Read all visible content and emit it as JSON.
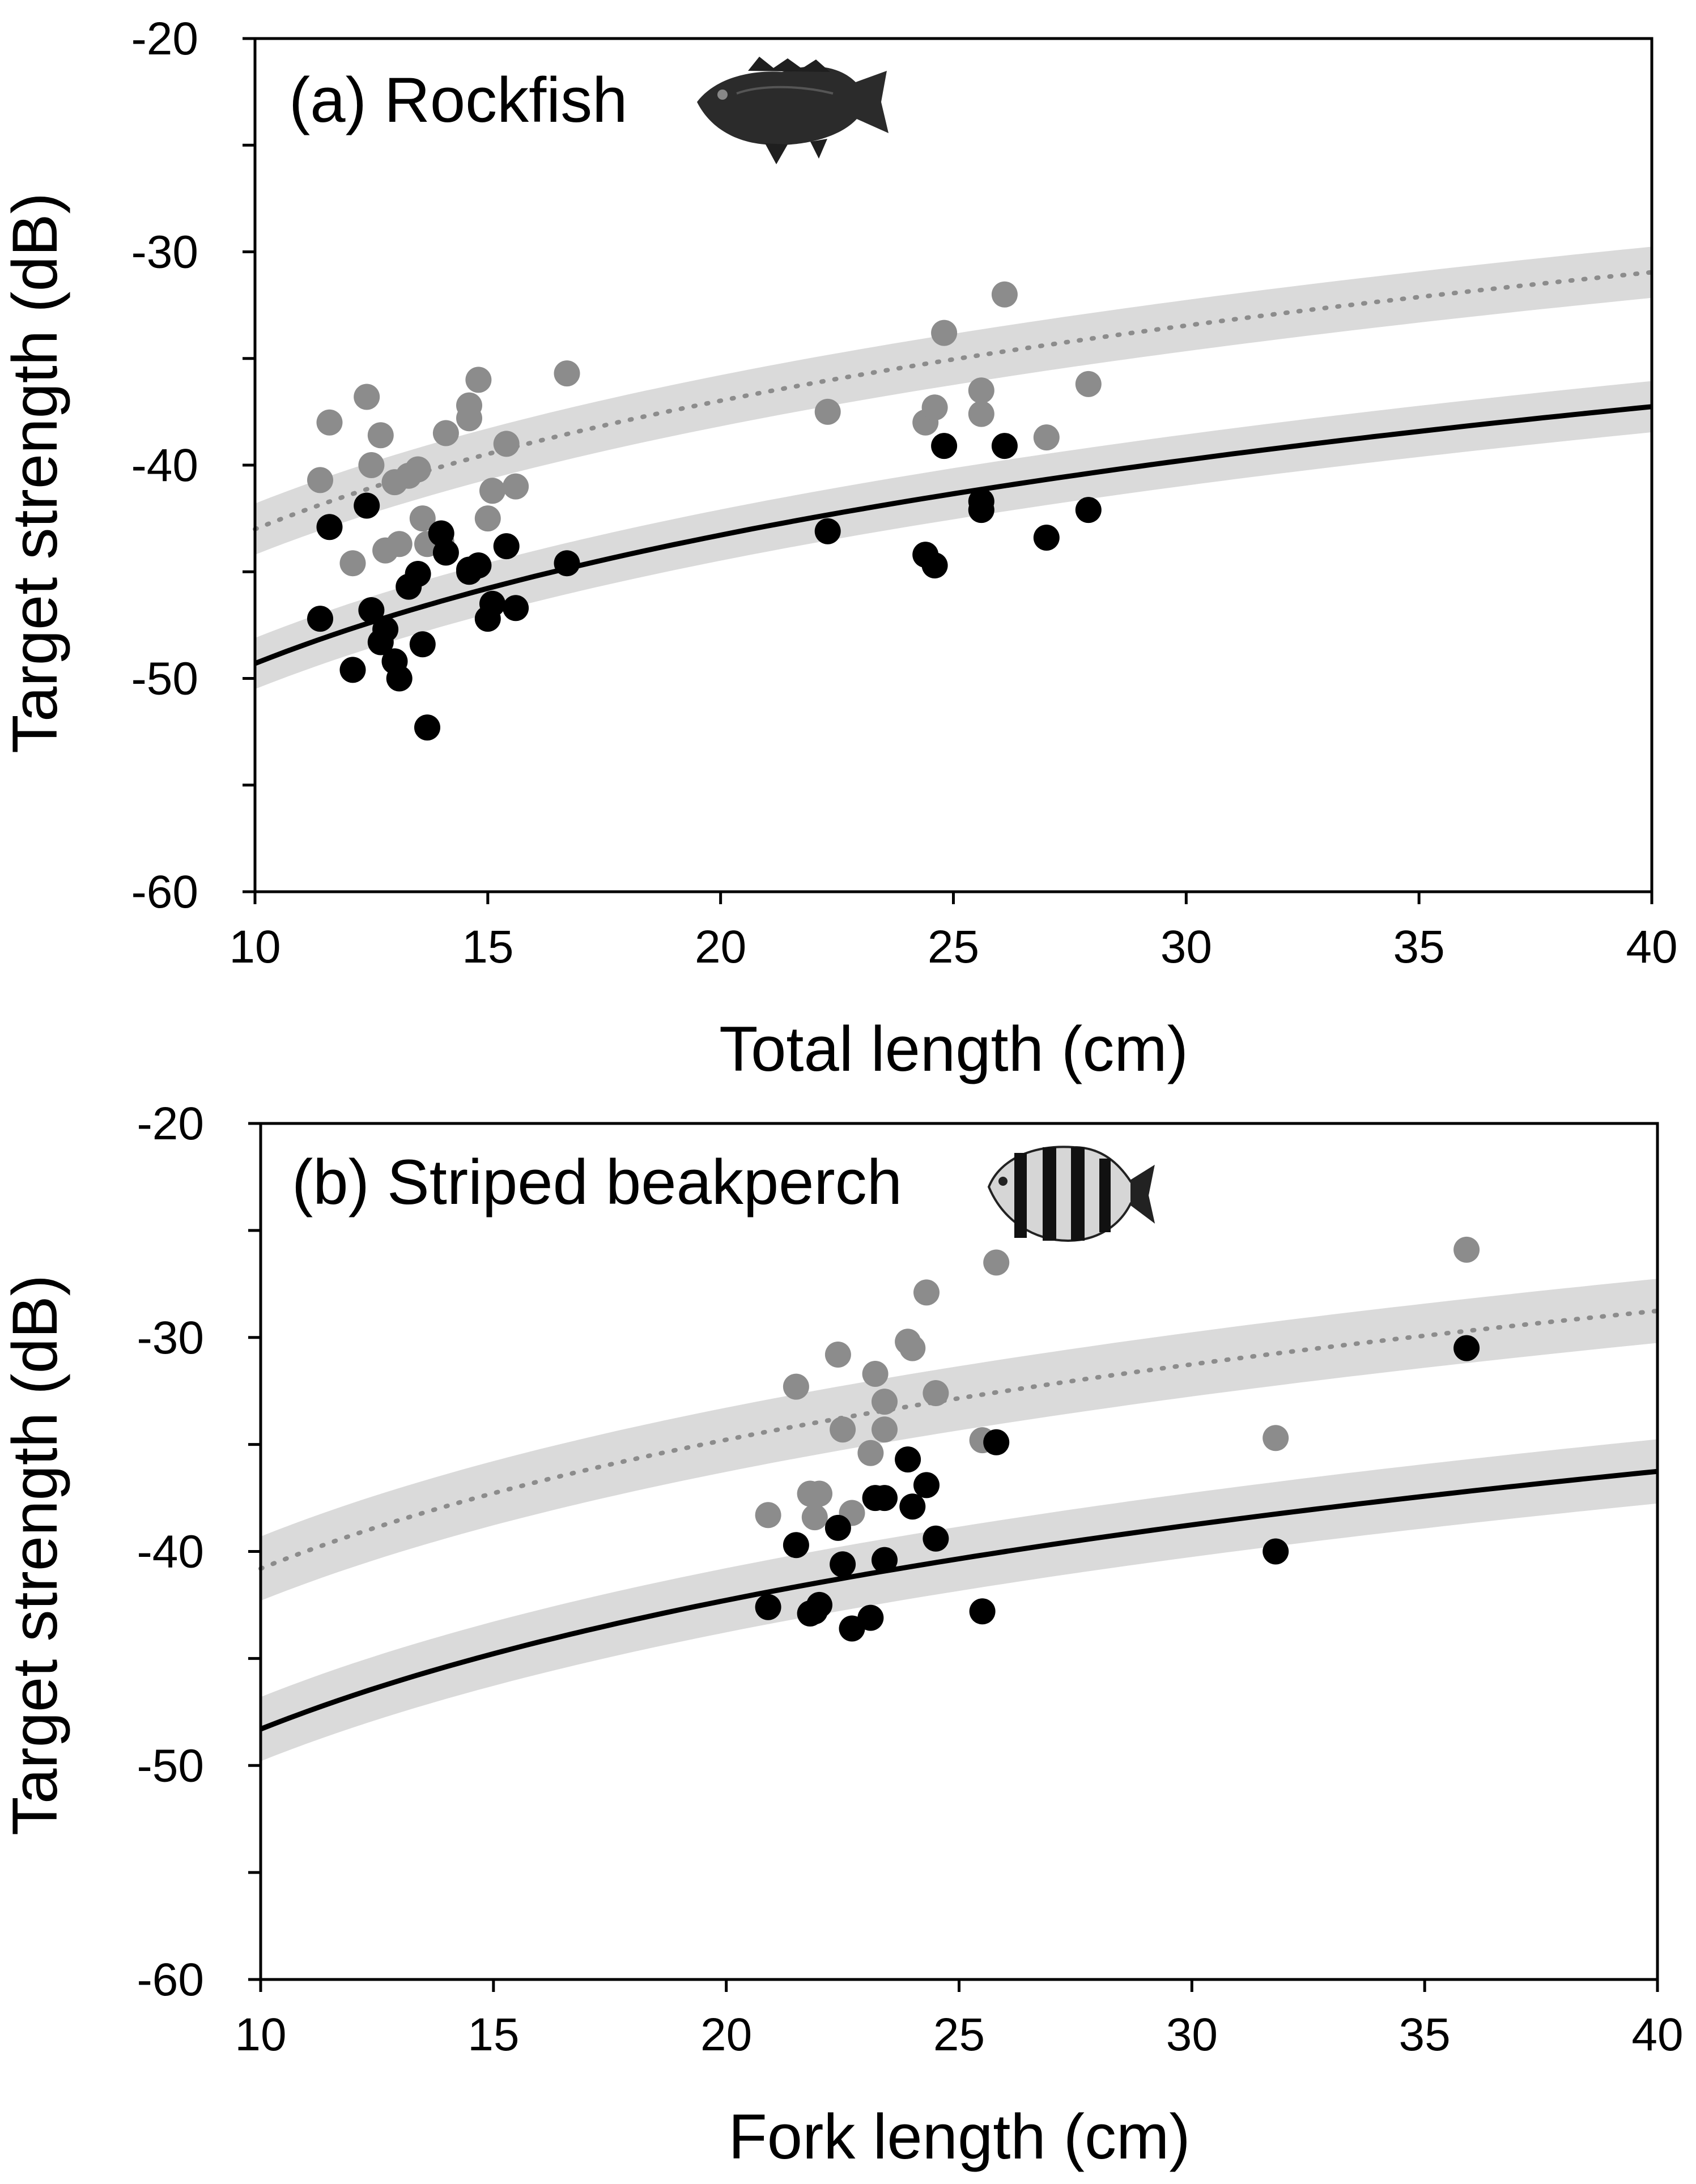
{
  "chart_data": [
    {
      "type": "scatter",
      "panel_id": "a",
      "title": "(a) Rockfish",
      "xlabel": "Total length (cm)",
      "ylabel": "Target strength (dB)",
      "xlim": [
        10,
        40
      ],
      "ylim": [
        -60,
        -20
      ],
      "xticks": [
        10,
        15,
        20,
        25,
        30,
        35,
        40
      ],
      "yticks": [
        -20,
        -30,
        -40,
        -50,
        -60
      ],
      "xtick_labels": [
        "10",
        "15",
        "20",
        "25",
        "30",
        "35",
        "40"
      ],
      "ytick_labels": [
        "-20",
        "-30",
        "-40",
        "-50",
        "-60"
      ],
      "icon": "rockfish-icon",
      "series": [
        {
          "name": "gray points",
          "color": "#8c8c8c",
          "x": [
            11.4,
            11.6,
            12.1,
            12.4,
            12.5,
            12.7,
            12.8,
            13.0,
            13.1,
            13.3,
            13.5,
            13.6,
            13.7,
            14.0,
            14.1,
            14.6,
            14.6,
            14.8,
            15.0,
            15.1,
            15.4,
            15.6,
            16.7,
            22.3,
            24.4,
            24.6,
            24.8,
            25.6,
            25.6,
            26.1,
            27.0,
            27.9
          ],
          "y": [
            -40.7,
            -38.0,
            -44.6,
            -36.8,
            -40.0,
            -38.6,
            -44.0,
            -40.8,
            -43.7,
            -40.5,
            -40.2,
            -42.5,
            -43.7,
            -43.6,
            -38.5,
            -37.8,
            -37.2,
            -36.0,
            -42.5,
            -41.2,
            -39.0,
            -41.0,
            -35.7,
            -37.5,
            -38.0,
            -37.3,
            -33.8,
            -36.5,
            -37.6,
            -32.0,
            -38.7,
            -36.2
          ]
        },
        {
          "name": "black points",
          "color": "#000000",
          "x": [
            11.4,
            11.6,
            12.1,
            12.4,
            12.5,
            12.7,
            12.8,
            13.0,
            13.1,
            13.3,
            13.5,
            13.6,
            13.7,
            14.0,
            14.1,
            14.6,
            14.6,
            14.8,
            15.0,
            15.1,
            15.4,
            15.6,
            16.7,
            22.3,
            24.4,
            24.6,
            24.8,
            25.6,
            25.6,
            26.1,
            27.0,
            27.9
          ],
          "y": [
            -47.2,
            -42.9,
            -49.6,
            -41.9,
            -46.8,
            -48.3,
            -47.7,
            -49.2,
            -50.0,
            -45.7,
            -45.1,
            -48.4,
            -52.3,
            -43.2,
            -44.1,
            -44.9,
            -45.0,
            -44.7,
            -47.2,
            -46.5,
            -43.8,
            -46.7,
            -44.6,
            -43.1,
            -44.2,
            -44.7,
            -39.1,
            -41.7,
            -42.1,
            -39.1,
            -43.4,
            -42.1
          ]
        }
      ],
      "curves": [
        {
          "name": "dotted fit",
          "style": "dotted",
          "color": "#8c8c8c",
          "band": "#dadada",
          "a": 20,
          "b": -63.0,
          "band_halfwidth_db": 1.2
        },
        {
          "name": "solid fit",
          "style": "solid",
          "color": "#000000",
          "band": "#dadada",
          "a": 20,
          "b": -69.3,
          "band_halfwidth_db": 1.2
        }
      ]
    },
    {
      "type": "scatter",
      "panel_id": "b",
      "title": "(b) Striped beakperch",
      "xlabel": "Fork length (cm)",
      "ylabel": "Target strength (dB)",
      "xlim": [
        10,
        40
      ],
      "ylim": [
        -60,
        -20
      ],
      "xticks": [
        10,
        15,
        20,
        25,
        30,
        35,
        40
      ],
      "yticks": [
        -20,
        -30,
        -40,
        -50,
        -60
      ],
      "xtick_labels": [
        "10",
        "15",
        "20",
        "25",
        "30",
        "35",
        "40"
      ],
      "ytick_labels": [
        "-20",
        "-30",
        "-40",
        "-50",
        "-60"
      ],
      "icon": "striped-beakperch-icon",
      "series": [
        {
          "name": "gray points",
          "color": "#8c8c8c",
          "x": [
            20.9,
            21.5,
            21.8,
            21.9,
            22.0,
            22.4,
            22.5,
            22.7,
            23.1,
            23.2,
            23.4,
            23.4,
            23.9,
            24.0,
            24.3,
            24.5,
            25.5,
            25.8,
            31.8,
            35.9
          ],
          "y": [
            -38.3,
            -32.3,
            -37.3,
            -38.4,
            -37.3,
            -30.8,
            -34.3,
            -38.2,
            -35.4,
            -31.7,
            -33.0,
            -34.3,
            -30.2,
            -30.5,
            -27.9,
            -32.6,
            -34.8,
            -26.5,
            -34.7,
            -25.9
          ]
        },
        {
          "name": "black points",
          "color": "#000000",
          "x": [
            20.9,
            21.5,
            21.8,
            21.9,
            22.0,
            22.4,
            22.5,
            22.7,
            23.1,
            23.2,
            23.4,
            23.4,
            23.9,
            24.0,
            24.3,
            24.5,
            25.5,
            25.8,
            31.8,
            35.9
          ],
          "y": [
            -42.6,
            -39.7,
            -42.9,
            -42.8,
            -42.5,
            -38.9,
            -40.6,
            -43.6,
            -43.1,
            -37.5,
            -37.5,
            -40.4,
            -35.7,
            -37.9,
            -36.9,
            -39.4,
            -42.8,
            -34.9,
            -40.0,
            -30.5
          ]
        }
      ],
      "curves": [
        {
          "name": "dotted fit",
          "style": "dotted",
          "color": "#8c8c8c",
          "band": "#dadada",
          "a": 20,
          "b": -60.8,
          "band_halfwidth_db": 1.5
        },
        {
          "name": "solid fit",
          "style": "solid",
          "color": "#000000",
          "band": "#dadada",
          "a": 20,
          "b": -68.3,
          "band_halfwidth_db": 1.5
        }
      ]
    }
  ]
}
